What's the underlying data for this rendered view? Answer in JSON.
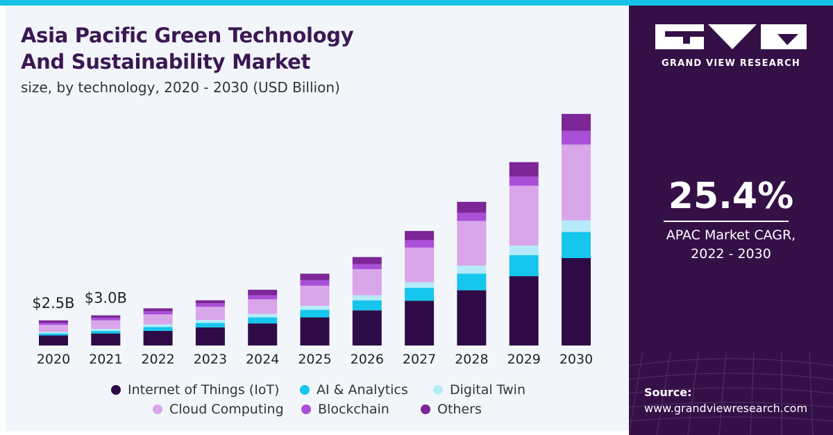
{
  "header": {
    "title_line1": "Asia Pacific Green Technology",
    "title_line2": "And Sustainability Market",
    "subtitle": "size, by technology, 2020 - 2030 (USD Billion)"
  },
  "brand": {
    "name": "GRAND VIEW RESEARCH",
    "logo_icon": "gvr-logo-icon"
  },
  "stat": {
    "value": "25.4%",
    "label_line1": "APAC Market CAGR,",
    "label_line2": "2022 - 2030"
  },
  "source": {
    "label": "Source:",
    "url": "www.grandviewresearch.com"
  },
  "colors": {
    "accent_bar": "#16c1e7",
    "panel": "#351047",
    "title": "#3b1853"
  },
  "chart_data": {
    "type": "bar",
    "stacked": true,
    "title": "Asia Pacific Green Technology And Sustainability Market",
    "subtitle": "size, by technology, 2020 - 2030 (USD Billion)",
    "categories": [
      "2020",
      "2021",
      "2022",
      "2023",
      "2024",
      "2025",
      "2026",
      "2027",
      "2028",
      "2029",
      "2030"
    ],
    "series": [
      {
        "name": "Internet of Things (IoT)",
        "color": "#2e0b47",
        "values": [
          1.0,
          1.2,
          1.45,
          1.8,
          2.2,
          2.8,
          3.5,
          4.45,
          5.5,
          6.9,
          8.7
        ]
      },
      {
        "name": "AI & Analytics",
        "color": "#16c6ec",
        "values": [
          0.2,
          0.25,
          0.4,
          0.45,
          0.6,
          0.75,
          1.0,
          1.3,
          1.65,
          2.1,
          2.6
        ]
      },
      {
        "name": "Digital Twin",
        "color": "#b5ebf8",
        "values": [
          0.15,
          0.2,
          0.25,
          0.3,
          0.35,
          0.4,
          0.5,
          0.55,
          0.8,
          0.95,
          1.15
        ]
      },
      {
        "name": "Cloud Computing",
        "color": "#d9a6ea",
        "values": [
          0.7,
          0.85,
          1.0,
          1.3,
          1.45,
          2.0,
          2.6,
          3.45,
          4.45,
          5.95,
          7.55
        ]
      },
      {
        "name": "Blockchain",
        "color": "#aa4fd8",
        "values": [
          0.2,
          0.25,
          0.3,
          0.35,
          0.4,
          0.55,
          0.5,
          0.75,
          0.8,
          0.9,
          1.35
        ]
      },
      {
        "name": "Others",
        "color": "#7c2697",
        "values": [
          0.25,
          0.25,
          0.3,
          0.3,
          0.55,
          0.65,
          0.7,
          0.9,
          1.1,
          1.45,
          1.7
        ]
      }
    ],
    "data_labels": [
      {
        "category": "2020",
        "text": "$2.5B"
      },
      {
        "category": "2021",
        "text": "$3.0B"
      }
    ],
    "xlabel": "",
    "ylabel": "",
    "ylim": [
      0,
      23.2
    ],
    "grid": false,
    "legend": "bottom"
  }
}
